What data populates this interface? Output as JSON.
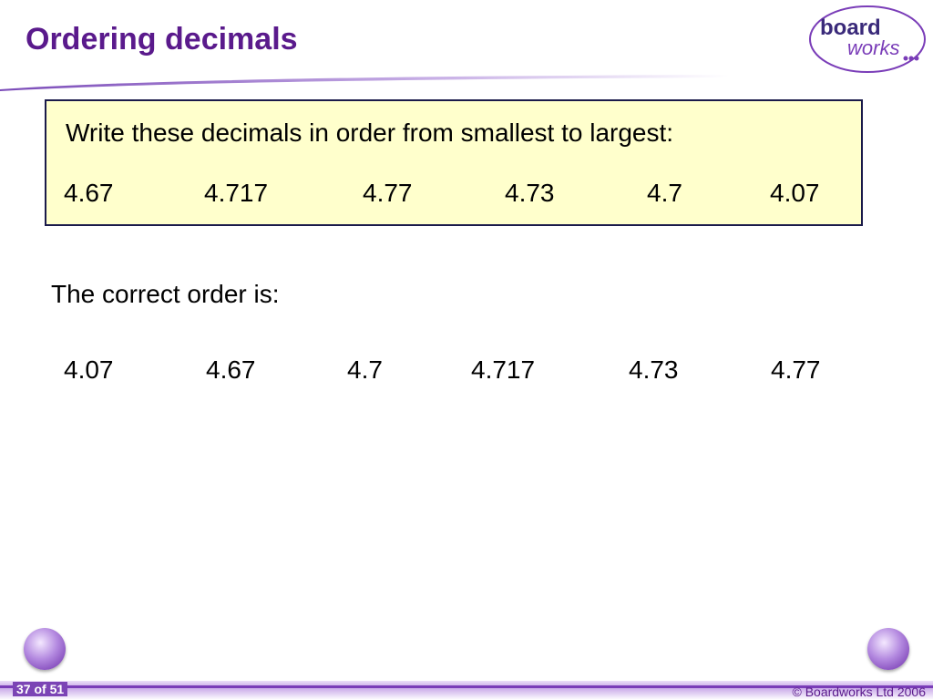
{
  "header": {
    "title": "Ordering decimals",
    "logo": {
      "line1": "board",
      "line2": "works"
    }
  },
  "question": {
    "prompt": "Write these decimals in order from smallest to largest:",
    "numbers": [
      "4.67",
      "4.717",
      "4.77",
      "4.73",
      "4.7",
      "4.07"
    ]
  },
  "answer": {
    "label": "The correct order is:",
    "numbers": [
      "4.07",
      "4.67",
      "4.7",
      "4.717",
      "4.73",
      "4.77"
    ]
  },
  "footer": {
    "page": "37 of 51",
    "copyright": "© Boardworks Ltd 2006"
  }
}
